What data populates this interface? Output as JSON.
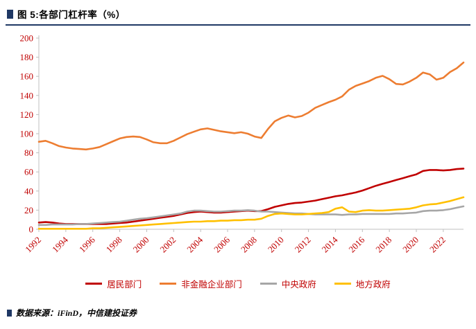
{
  "header": {
    "title": "图 5:各部门杠杆率（%）"
  },
  "footer": {
    "source": "数据来源：iFinD，中信建投证券"
  },
  "colors": {
    "accent_navy": "#1F3864",
    "tick_label_red": "#C00000",
    "axis_gray": "#BFBFBF"
  },
  "chart_data": {
    "type": "line",
    "title": "各部门杠杆率（%）",
    "xlabel": "",
    "ylabel": "",
    "grid": false,
    "legend_position": "bottom",
    "xlim": [
      1992,
      2023.5
    ],
    "ylim": [
      0,
      200
    ],
    "yticks": [
      0,
      20,
      40,
      60,
      80,
      100,
      120,
      140,
      160,
      180,
      200
    ],
    "xticks": [
      1992,
      1994,
      1996,
      1998,
      2000,
      2002,
      2004,
      2006,
      2008,
      2010,
      2012,
      2014,
      2016,
      2018,
      2020,
      2022
    ],
    "axis_color": "#BFBFBF",
    "tick_color": "#C00000",
    "x": [
      1992,
      1992.5,
      1993,
      1993.5,
      1994,
      1994.5,
      1995,
      1995.5,
      1996,
      1996.5,
      1997,
      1997.5,
      1998,
      1998.5,
      1999,
      1999.5,
      2000,
      2000.5,
      2001,
      2001.5,
      2002,
      2002.5,
      2003,
      2003.5,
      2004,
      2004.5,
      2005,
      2005.5,
      2006,
      2006.5,
      2007,
      2007.5,
      2008,
      2008.5,
      2009,
      2009.5,
      2010,
      2010.5,
      2011,
      2011.5,
      2012,
      2012.5,
      2013,
      2013.5,
      2014,
      2014.5,
      2015,
      2015.5,
      2016,
      2016.5,
      2017,
      2017.5,
      2018,
      2018.5,
      2019,
      2019.5,
      2020,
      2020.5,
      2021,
      2021.5,
      2022,
      2022.5,
      2023,
      2023.5
    ],
    "series": [
      {
        "name": "居民部门",
        "color": "#C00000",
        "values": [
          7,
          7.5,
          7,
          6,
          5.5,
          5.5,
          5.5,
          5.5,
          5.5,
          5.5,
          5.5,
          6,
          6.5,
          7,
          8,
          9,
          10,
          11,
          12,
          13,
          14,
          15.5,
          17,
          18,
          18.5,
          18,
          17.5,
          17.5,
          18,
          18.5,
          19,
          19.5,
          19,
          19,
          21,
          23.5,
          25,
          26.5,
          27.5,
          28,
          29,
          30,
          31.5,
          33,
          34.5,
          35.5,
          37,
          38.5,
          40.5,
          43,
          45.5,
          47.5,
          49.5,
          51.5,
          53.5,
          55.5,
          57.5,
          61,
          62,
          62,
          61.5,
          62,
          63,
          63.5
        ]
      },
      {
        "name": "非金融企业部门",
        "color": "#ED7D31",
        "values": [
          91.5,
          92.5,
          90,
          87,
          85.5,
          84.5,
          84,
          83.5,
          84.5,
          86,
          89,
          92,
          95,
          96.5,
          97,
          96.5,
          94,
          91,
          90,
          90,
          92.5,
          96,
          99.5,
          102,
          104.5,
          105.5,
          104,
          102.5,
          101.5,
          100.5,
          101.5,
          100,
          97,
          95.5,
          105,
          113,
          116.5,
          119,
          117,
          118.5,
          122,
          127,
          130,
          133,
          135.5,
          139,
          146,
          150,
          152.5,
          155,
          158.5,
          160.5,
          157,
          152,
          151.5,
          154.5,
          158.5,
          164,
          162,
          156.5,
          158.5,
          164.5,
          168.5,
          174.5
        ]
      },
      {
        "name": "中央政府",
        "color": "#A6A6A6",
        "values": [
          4.5,
          4.5,
          5,
          5,
          5,
          5,
          5.5,
          5.5,
          6,
          6.5,
          7,
          7.5,
          8,
          9,
          10,
          11,
          11.5,
          12.5,
          13.5,
          14.5,
          15.5,
          16.5,
          18.5,
          19.5,
          19.5,
          19,
          18.5,
          18.5,
          19,
          19.5,
          19.5,
          20,
          19.5,
          18.5,
          18.5,
          18,
          17.5,
          17,
          16.5,
          16.5,
          16,
          15.5,
          15.5,
          15.5,
          15.5,
          15,
          15.5,
          15.5,
          16,
          16,
          16,
          16,
          16,
          16.5,
          16.5,
          17,
          17.5,
          19,
          19.5,
          19.5,
          20,
          21,
          22.5,
          24
        ]
      },
      {
        "name": "地方政府",
        "color": "#FFC000",
        "values": [
          0.5,
          0.5,
          0.5,
          0.5,
          0.5,
          0.5,
          0.5,
          0.5,
          1,
          1,
          1.5,
          2,
          2.5,
          3,
          3.5,
          4,
          4.5,
          5,
          5.5,
          6,
          6.5,
          7,
          7.5,
          8,
          8,
          8.5,
          8.5,
          9,
          9,
          9.5,
          9.5,
          10,
          10,
          11,
          14,
          16,
          16.5,
          16,
          15.5,
          15.5,
          16,
          16.5,
          17,
          18,
          21.5,
          23,
          18.5,
          18,
          19.5,
          20,
          19.5,
          19.5,
          20,
          20.5,
          21,
          21.5,
          23,
          25,
          26,
          26.5,
          28,
          29.5,
          31.5,
          33.5
        ]
      }
    ]
  }
}
